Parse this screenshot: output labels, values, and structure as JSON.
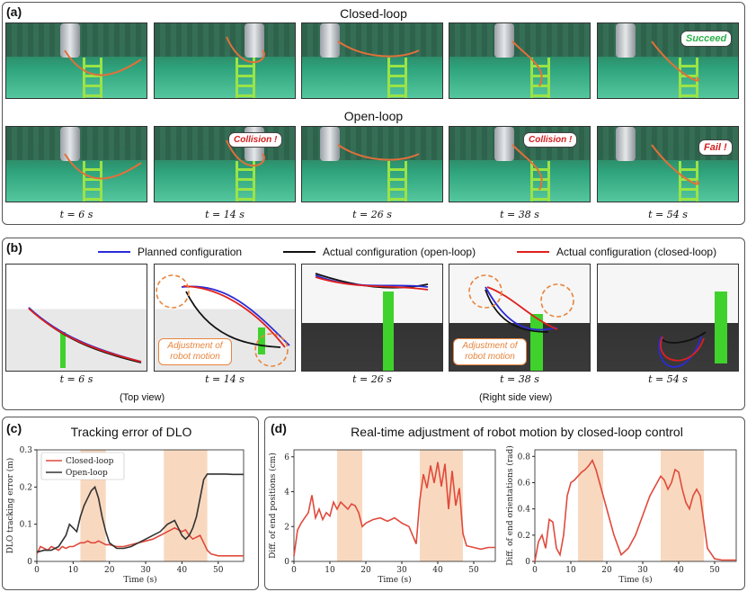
{
  "panel_a": {
    "label": "(a)",
    "closed_title": "Closed-loop",
    "open_title": "Open-loop",
    "times": [
      "t = 6 s",
      "t = 14 s",
      "t = 26 s",
      "t = 38 s",
      "t = 54 s"
    ],
    "succeed": "Succeed",
    "collision": "Collision !",
    "fail": "Fail !"
  },
  "panel_b": {
    "label": "(b)",
    "legend": [
      {
        "name": "Planned configuration",
        "color": "#2b2bd8"
      },
      {
        "name": "Actual configuration (open-loop)",
        "color": "#111111"
      },
      {
        "name": "Actual configuration (closed-loop)",
        "color": "#e0201c"
      }
    ],
    "times": [
      "t = 6 s",
      "t = 14 s",
      "t = 26 s",
      "t = 38 s",
      "t = 54 s"
    ],
    "top_view": "(Top view)",
    "right_view": "(Right side view)",
    "adjustment": "Adjustment of robot motion"
  },
  "panel_c": {
    "label": "(c)"
  },
  "panel_d": {
    "label": "(d)",
    "title": "Real-time adjustment of robot motion by closed-loop control"
  },
  "chart_data": [
    {
      "type": "line",
      "title": "Tracking error of DLO",
      "xlabel": "Time (s)",
      "ylabel": "DLO tracking error (m)",
      "xlim": [
        0,
        57
      ],
      "ylim": [
        0,
        0.3
      ],
      "xticks": [
        0,
        10,
        20,
        30,
        40,
        50
      ],
      "yticks": [
        0,
        0.1,
        0.2,
        0.3
      ],
      "highlight_ranges": [
        [
          12,
          19
        ],
        [
          35,
          47
        ]
      ],
      "legend": "top-left",
      "series": [
        {
          "name": "Closed-loop",
          "color": "#e04a3c",
          "x": [
            0,
            1,
            2,
            3,
            4,
            5,
            6,
            7,
            8,
            9,
            10,
            11,
            12,
            13,
            14,
            15,
            16,
            17,
            18,
            19,
            20,
            22,
            24,
            26,
            28,
            30,
            32,
            34,
            36,
            38,
            40,
            41,
            42,
            43,
            44,
            45,
            46,
            47,
            48,
            50,
            52,
            54,
            56,
            57
          ],
          "y": [
            0.02,
            0.04,
            0.035,
            0.03,
            0.04,
            0.035,
            0.03,
            0.04,
            0.035,
            0.04,
            0.04,
            0.045,
            0.05,
            0.05,
            0.055,
            0.05,
            0.05,
            0.055,
            0.05,
            0.045,
            0.045,
            0.04,
            0.04,
            0.045,
            0.05,
            0.055,
            0.06,
            0.07,
            0.08,
            0.09,
            0.08,
            0.085,
            0.07,
            0.06,
            0.065,
            0.07,
            0.05,
            0.03,
            0.02,
            0.015,
            0.015,
            0.015,
            0.015,
            0.015
          ]
        },
        {
          "name": "Open-loop",
          "color": "#333333",
          "x": [
            0,
            2,
            4,
            6,
            8,
            9,
            10,
            11,
            12,
            13,
            14,
            15,
            16,
            17,
            18,
            19,
            20,
            22,
            24,
            26,
            28,
            30,
            32,
            34,
            36,
            38,
            39,
            40,
            41,
            42,
            43,
            44,
            45,
            46,
            47,
            48,
            50,
            52,
            54,
            56,
            57
          ],
          "y": [
            0.025,
            0.03,
            0.03,
            0.04,
            0.07,
            0.1,
            0.09,
            0.08,
            0.12,
            0.15,
            0.17,
            0.19,
            0.2,
            0.17,
            0.12,
            0.08,
            0.05,
            0.035,
            0.035,
            0.04,
            0.05,
            0.06,
            0.07,
            0.08,
            0.1,
            0.11,
            0.09,
            0.07,
            0.06,
            0.07,
            0.09,
            0.12,
            0.17,
            0.22,
            0.235,
            0.235,
            0.235,
            0.235,
            0.234,
            0.234,
            0.234
          ]
        }
      ]
    },
    {
      "type": "line",
      "title": "",
      "xlabel": "Time (s)",
      "ylabel": "Diff. of end positions (cm)",
      "xlim": [
        0,
        56
      ],
      "ylim": [
        0,
        6.4
      ],
      "xticks": [
        0,
        10,
        20,
        30,
        40,
        50
      ],
      "yticks": [
        0,
        2,
        4,
        6
      ],
      "highlight_ranges": [
        [
          12,
          19
        ],
        [
          35,
          47
        ]
      ],
      "series": [
        {
          "name": "",
          "color": "#e04a3c",
          "x": [
            0,
            1,
            2,
            3,
            4,
            5,
            6,
            7,
            8,
            9,
            10,
            11,
            12,
            13,
            14,
            15,
            16,
            17,
            18,
            19,
            20,
            22,
            24,
            26,
            28,
            30,
            32,
            33,
            34,
            35,
            36,
            37,
            38,
            39,
            40,
            41,
            42,
            43,
            44,
            45,
            46,
            47,
            48,
            50,
            52,
            54,
            56
          ],
          "y": [
            0.3,
            1.8,
            2.2,
            2.5,
            2.8,
            3.8,
            2.5,
            3.0,
            2.4,
            2.8,
            2.6,
            3.4,
            3.0,
            3.4,
            3.2,
            3.0,
            3.3,
            3.2,
            2.8,
            2.0,
            2.2,
            2.4,
            2.5,
            2.3,
            2.5,
            2.2,
            2.0,
            1.5,
            1.0,
            3.5,
            5.0,
            4.2,
            5.5,
            4.5,
            5.7,
            4.3,
            5.6,
            3.0,
            5.2,
            3.2,
            4.2,
            1.6,
            0.9,
            0.8,
            0.7,
            0.8,
            0.8
          ]
        }
      ]
    },
    {
      "type": "line",
      "title": "",
      "xlabel": "Time (s)",
      "ylabel": "Diff. of end orientations (rad)",
      "xlim": [
        0,
        56
      ],
      "ylim": [
        0,
        0.85
      ],
      "xticks": [
        0,
        10,
        20,
        30,
        40,
        50
      ],
      "yticks": [
        0,
        0.2,
        0.4,
        0.6,
        0.8
      ],
      "highlight_ranges": [
        [
          12,
          19
        ],
        [
          35,
          47
        ]
      ],
      "series": [
        {
          "name": "",
          "color": "#e04a3c",
          "x": [
            0,
            1,
            2,
            3,
            4,
            5,
            6,
            7,
            8,
            9,
            10,
            11,
            12,
            13,
            14,
            15,
            16,
            17,
            18,
            19,
            20,
            22,
            24,
            26,
            28,
            30,
            32,
            34,
            35,
            36,
            37,
            38,
            39,
            40,
            41,
            42,
            43,
            44,
            45,
            46,
            47,
            48,
            50,
            52,
            54,
            56
          ],
          "y": [
            0.0,
            0.15,
            0.2,
            0.1,
            0.32,
            0.3,
            0.1,
            0.05,
            0.2,
            0.5,
            0.6,
            0.62,
            0.65,
            0.68,
            0.7,
            0.73,
            0.77,
            0.7,
            0.6,
            0.5,
            0.4,
            0.2,
            0.05,
            0.1,
            0.2,
            0.35,
            0.5,
            0.6,
            0.65,
            0.62,
            0.55,
            0.6,
            0.7,
            0.68,
            0.55,
            0.45,
            0.4,
            0.5,
            0.55,
            0.5,
            0.3,
            0.1,
            0.02,
            0.01,
            0.01,
            0.01
          ]
        }
      ]
    }
  ]
}
